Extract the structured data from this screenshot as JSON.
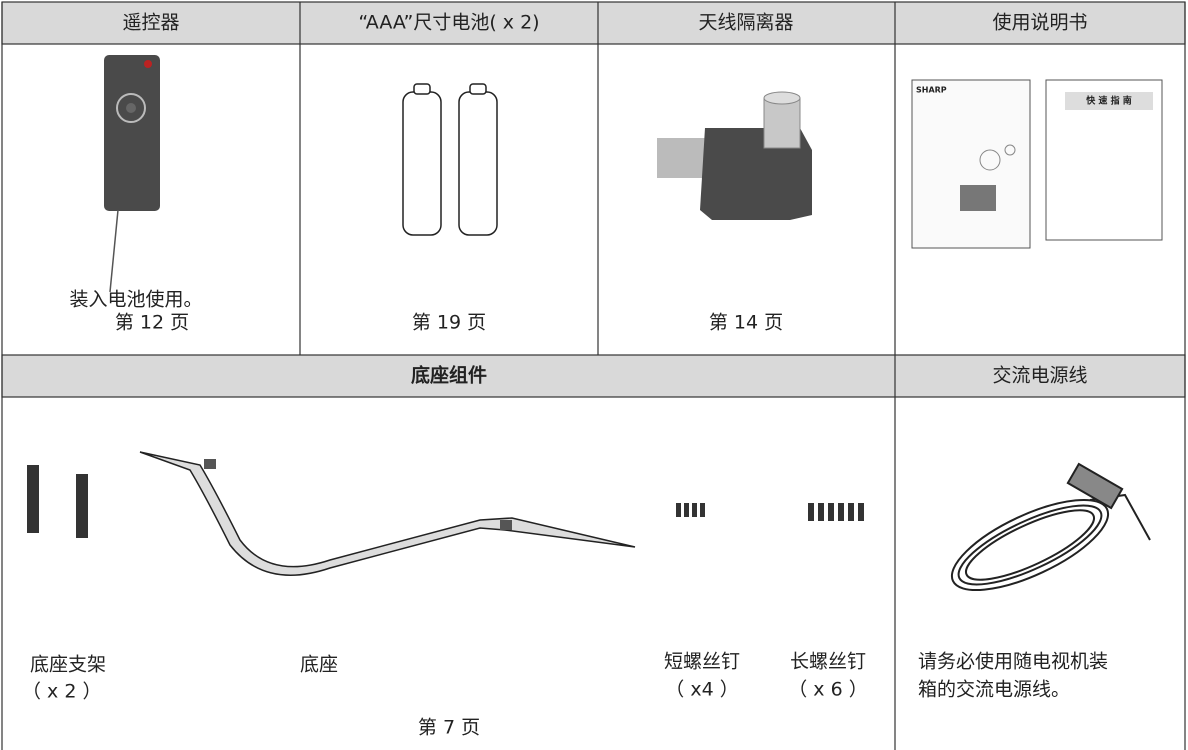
{
  "table": {
    "header": [
      "遥控器",
      "“AAA”尺寸电池( x 2)",
      "天线隔离器",
      "使用说明书"
    ],
    "items": [
      {
        "note": "装入电池使用。",
        "page": "第 12 页"
      },
      {
        "page": "第 19 页"
      },
      {
        "page": "第 14 页"
      },
      {
        "cover_brand": "SHARP",
        "guide_title": "快 速 指 南"
      }
    ],
    "section_headers": [
      "底座组件",
      "交流电源线"
    ],
    "stand_parts": [
      {
        "label": "底座支架",
        "qty": "（ x 2 ）"
      },
      {
        "label": "底座"
      },
      {
        "label": "短螺丝钉",
        "qty": "（ x4 ）"
      },
      {
        "label": "长螺丝钉",
        "qty": "（ x 6 ）"
      }
    ],
    "stand_page": "第 7 页",
    "power_cord_note": [
      "请务必使用随电视机装",
      "箱的交流电源线。"
    ]
  }
}
